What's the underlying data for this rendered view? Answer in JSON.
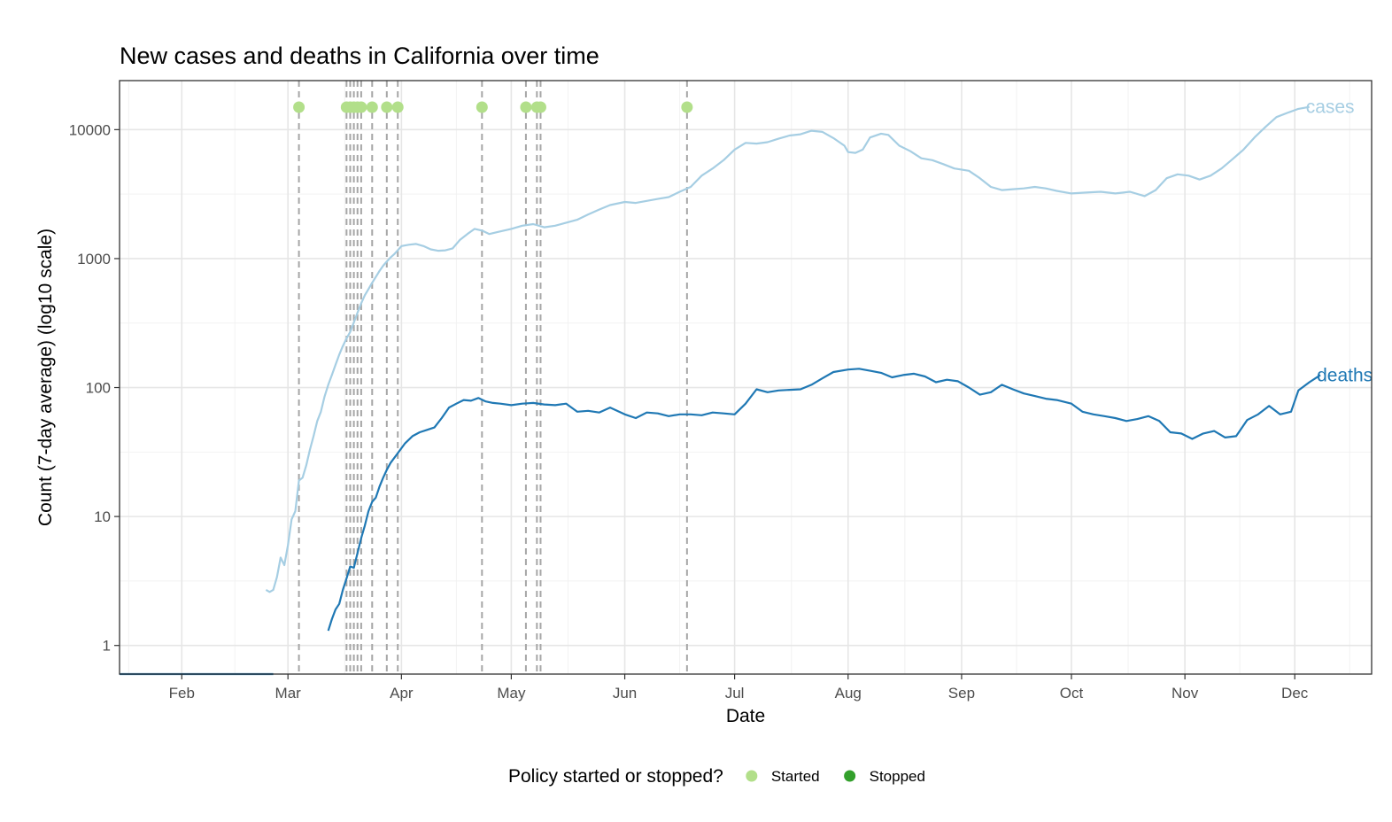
{
  "chart_data": {
    "type": "line",
    "title": "New cases and deaths in California over time",
    "xlabel": "Date",
    "ylabel": "Count (7-day average) (log10 scale)",
    "y_scale": "log10",
    "ylim": [
      0.6,
      24000
    ],
    "xlim": [
      "2020-01-15",
      "2020-12-22"
    ],
    "grid": true,
    "x_ticks": [
      {
        "date": "2020-02-01",
        "label": "Feb"
      },
      {
        "date": "2020-03-01",
        "label": "Mar"
      },
      {
        "date": "2020-04-01",
        "label": "Apr"
      },
      {
        "date": "2020-05-01",
        "label": "May"
      },
      {
        "date": "2020-06-01",
        "label": "Jun"
      },
      {
        "date": "2020-07-01",
        "label": "Jul"
      },
      {
        "date": "2020-08-01",
        "label": "Aug"
      },
      {
        "date": "2020-09-01",
        "label": "Sep"
      },
      {
        "date": "2020-10-01",
        "label": "Oct"
      },
      {
        "date": "2020-11-01",
        "label": "Nov"
      },
      {
        "date": "2020-12-01",
        "label": "Dec"
      }
    ],
    "y_ticks": [
      {
        "value": 1,
        "label": "1"
      },
      {
        "value": 10,
        "label": "10"
      },
      {
        "value": 100,
        "label": "100"
      },
      {
        "value": 1000,
        "label": "1000"
      },
      {
        "value": 10000,
        "label": "10000"
      }
    ],
    "series": [
      {
        "name": "cases",
        "color": "#a6cee3",
        "points": [
          [
            "2020-02-24",
            2.7
          ],
          [
            "2020-02-25",
            2.6
          ],
          [
            "2020-02-26",
            2.7
          ],
          [
            "2020-02-27",
            3.4
          ],
          [
            "2020-02-28",
            4.8
          ],
          [
            "2020-02-29",
            4.2
          ],
          [
            "2020-03-01",
            6
          ],
          [
            "2020-03-02",
            9.5
          ],
          [
            "2020-03-03",
            11
          ],
          [
            "2020-03-04",
            19
          ],
          [
            "2020-03-05",
            20
          ],
          [
            "2020-03-06",
            25
          ],
          [
            "2020-03-07",
            33
          ],
          [
            "2020-03-08",
            42
          ],
          [
            "2020-03-09",
            55
          ],
          [
            "2020-03-10",
            65
          ],
          [
            "2020-03-11",
            85
          ],
          [
            "2020-03-12",
            105
          ],
          [
            "2020-03-13",
            125
          ],
          [
            "2020-03-14",
            150
          ],
          [
            "2020-03-15",
            180
          ],
          [
            "2020-03-16",
            210
          ],
          [
            "2020-03-17",
            240
          ],
          [
            "2020-03-18",
            270
          ],
          [
            "2020-03-19",
            320
          ],
          [
            "2020-03-20",
            380
          ],
          [
            "2020-03-21",
            450
          ],
          [
            "2020-03-22",
            520
          ],
          [
            "2020-03-23",
            580
          ],
          [
            "2020-03-24",
            650
          ],
          [
            "2020-03-25",
            720
          ],
          [
            "2020-03-26",
            800
          ],
          [
            "2020-03-27",
            880
          ],
          [
            "2020-03-28",
            950
          ],
          [
            "2020-03-29",
            1020
          ],
          [
            "2020-03-30",
            1080
          ],
          [
            "2020-04-01",
            1250
          ],
          [
            "2020-04-03",
            1280
          ],
          [
            "2020-04-05",
            1300
          ],
          [
            "2020-04-07",
            1250
          ],
          [
            "2020-04-09",
            1180
          ],
          [
            "2020-04-11",
            1150
          ],
          [
            "2020-04-13",
            1160
          ],
          [
            "2020-04-15",
            1200
          ],
          [
            "2020-04-17",
            1400
          ],
          [
            "2020-04-19",
            1550
          ],
          [
            "2020-04-21",
            1700
          ],
          [
            "2020-04-23",
            1650
          ],
          [
            "2020-04-25",
            1550
          ],
          [
            "2020-04-27",
            1600
          ],
          [
            "2020-04-29",
            1650
          ],
          [
            "2020-05-01",
            1700
          ],
          [
            "2020-05-04",
            1800
          ],
          [
            "2020-05-07",
            1850
          ],
          [
            "2020-05-10",
            1750
          ],
          [
            "2020-05-13",
            1800
          ],
          [
            "2020-05-16",
            1900
          ],
          [
            "2020-05-19",
            2000
          ],
          [
            "2020-05-22",
            2200
          ],
          [
            "2020-05-25",
            2400
          ],
          [
            "2020-05-28",
            2600
          ],
          [
            "2020-06-01",
            2750
          ],
          [
            "2020-06-04",
            2700
          ],
          [
            "2020-06-07",
            2800
          ],
          [
            "2020-06-10",
            2900
          ],
          [
            "2020-06-13",
            3000
          ],
          [
            "2020-06-16",
            3300
          ],
          [
            "2020-06-19",
            3600
          ],
          [
            "2020-06-22",
            4400
          ],
          [
            "2020-06-25",
            5000
          ],
          [
            "2020-06-28",
            5800
          ],
          [
            "2020-07-01",
            7000
          ],
          [
            "2020-07-04",
            7900
          ],
          [
            "2020-07-07",
            7800
          ],
          [
            "2020-07-10",
            8000
          ],
          [
            "2020-07-13",
            8500
          ],
          [
            "2020-07-16",
            9000
          ],
          [
            "2020-07-19",
            9200
          ],
          [
            "2020-07-22",
            9800
          ],
          [
            "2020-07-25",
            9600
          ],
          [
            "2020-07-28",
            8600
          ],
          [
            "2020-07-31",
            7500
          ],
          [
            "2020-08-01",
            6700
          ],
          [
            "2020-08-03",
            6600
          ],
          [
            "2020-08-05",
            7000
          ],
          [
            "2020-08-07",
            8700
          ],
          [
            "2020-08-10",
            9300
          ],
          [
            "2020-08-12",
            9100
          ],
          [
            "2020-08-15",
            7500
          ],
          [
            "2020-08-18",
            6800
          ],
          [
            "2020-08-21",
            6000
          ],
          [
            "2020-08-24",
            5800
          ],
          [
            "2020-08-27",
            5400
          ],
          [
            "2020-08-30",
            5000
          ],
          [
            "2020-09-03",
            4800
          ],
          [
            "2020-09-06",
            4200
          ],
          [
            "2020-09-09",
            3600
          ],
          [
            "2020-09-12",
            3400
          ],
          [
            "2020-09-15",
            3450
          ],
          [
            "2020-09-18",
            3500
          ],
          [
            "2020-09-21",
            3600
          ],
          [
            "2020-09-24",
            3500
          ],
          [
            "2020-09-27",
            3350
          ],
          [
            "2020-10-01",
            3200
          ],
          [
            "2020-10-05",
            3250
          ],
          [
            "2020-10-09",
            3300
          ],
          [
            "2020-10-13",
            3200
          ],
          [
            "2020-10-17",
            3300
          ],
          [
            "2020-10-21",
            3050
          ],
          [
            "2020-10-24",
            3400
          ],
          [
            "2020-10-27",
            4200
          ],
          [
            "2020-10-30",
            4500
          ],
          [
            "2020-11-02",
            4400
          ],
          [
            "2020-11-05",
            4100
          ],
          [
            "2020-11-08",
            4400
          ],
          [
            "2020-11-11",
            5000
          ],
          [
            "2020-11-14",
            5900
          ],
          [
            "2020-11-17",
            7000
          ],
          [
            "2020-11-20",
            8700
          ],
          [
            "2020-11-23",
            10500
          ],
          [
            "2020-11-26",
            12500
          ],
          [
            "2020-11-29",
            13500
          ],
          [
            "2020-12-02",
            14500
          ],
          [
            "2020-12-05",
            15000
          ]
        ]
      },
      {
        "name": "deaths",
        "color": "#1f78b4",
        "points": [
          [
            "2020-03-12",
            1.3
          ],
          [
            "2020-03-13",
            1.6
          ],
          [
            "2020-03-14",
            1.9
          ],
          [
            "2020-03-15",
            2.1
          ],
          [
            "2020-03-16",
            2.7
          ],
          [
            "2020-03-17",
            3.3
          ],
          [
            "2020-03-18",
            4.1
          ],
          [
            "2020-03-19",
            4
          ],
          [
            "2020-03-20",
            5.2
          ],
          [
            "2020-03-21",
            6.8
          ],
          [
            "2020-03-22",
            8.5
          ],
          [
            "2020-03-23",
            11
          ],
          [
            "2020-03-24",
            13
          ],
          [
            "2020-03-25",
            14
          ],
          [
            "2020-03-26",
            17
          ],
          [
            "2020-03-27",
            20
          ],
          [
            "2020-03-28",
            23
          ],
          [
            "2020-03-29",
            26
          ],
          [
            "2020-03-31",
            31
          ],
          [
            "2020-04-02",
            37
          ],
          [
            "2020-04-04",
            42
          ],
          [
            "2020-04-06",
            45
          ],
          [
            "2020-04-08",
            47
          ],
          [
            "2020-04-10",
            49
          ],
          [
            "2020-04-12",
            58
          ],
          [
            "2020-04-14",
            70
          ],
          [
            "2020-04-16",
            75
          ],
          [
            "2020-04-18",
            80
          ],
          [
            "2020-04-20",
            79
          ],
          [
            "2020-04-22",
            83
          ],
          [
            "2020-04-24",
            78
          ],
          [
            "2020-04-26",
            76
          ],
          [
            "2020-04-28",
            75
          ],
          [
            "2020-05-01",
            73
          ],
          [
            "2020-05-04",
            75
          ],
          [
            "2020-05-07",
            76
          ],
          [
            "2020-05-10",
            74
          ],
          [
            "2020-05-13",
            73
          ],
          [
            "2020-05-16",
            75
          ],
          [
            "2020-05-19",
            65
          ],
          [
            "2020-05-22",
            66
          ],
          [
            "2020-05-25",
            64
          ],
          [
            "2020-05-28",
            70
          ],
          [
            "2020-06-01",
            62
          ],
          [
            "2020-06-04",
            58
          ],
          [
            "2020-06-07",
            64
          ],
          [
            "2020-06-10",
            63
          ],
          [
            "2020-06-13",
            60
          ],
          [
            "2020-06-16",
            62
          ],
          [
            "2020-06-19",
            62
          ],
          [
            "2020-06-22",
            61
          ],
          [
            "2020-06-25",
            64
          ],
          [
            "2020-06-28",
            63
          ],
          [
            "2020-07-01",
            62
          ],
          [
            "2020-07-04",
            75
          ],
          [
            "2020-07-07",
            97
          ],
          [
            "2020-07-10",
            92
          ],
          [
            "2020-07-13",
            95
          ],
          [
            "2020-07-16",
            96
          ],
          [
            "2020-07-19",
            97
          ],
          [
            "2020-07-22",
            105
          ],
          [
            "2020-07-25",
            118
          ],
          [
            "2020-07-28",
            132
          ],
          [
            "2020-08-01",
            138
          ],
          [
            "2020-08-04",
            140
          ],
          [
            "2020-08-07",
            135
          ],
          [
            "2020-08-10",
            130
          ],
          [
            "2020-08-13",
            120
          ],
          [
            "2020-08-16",
            125
          ],
          [
            "2020-08-19",
            128
          ],
          [
            "2020-08-22",
            122
          ],
          [
            "2020-08-25",
            110
          ],
          [
            "2020-08-28",
            115
          ],
          [
            "2020-08-31",
            112
          ],
          [
            "2020-09-03",
            100
          ],
          [
            "2020-09-06",
            88
          ],
          [
            "2020-09-09",
            92
          ],
          [
            "2020-09-12",
            105
          ],
          [
            "2020-09-15",
            97
          ],
          [
            "2020-09-18",
            90
          ],
          [
            "2020-09-21",
            86
          ],
          [
            "2020-09-24",
            82
          ],
          [
            "2020-09-27",
            80
          ],
          [
            "2020-10-01",
            75
          ],
          [
            "2020-10-04",
            65
          ],
          [
            "2020-10-07",
            62
          ],
          [
            "2020-10-10",
            60
          ],
          [
            "2020-10-13",
            58
          ],
          [
            "2020-10-16",
            55
          ],
          [
            "2020-10-19",
            57
          ],
          [
            "2020-10-22",
            60
          ],
          [
            "2020-10-25",
            55
          ],
          [
            "2020-10-28",
            45
          ],
          [
            "2020-10-31",
            44
          ],
          [
            "2020-11-03",
            40
          ],
          [
            "2020-11-06",
            44
          ],
          [
            "2020-11-09",
            46
          ],
          [
            "2020-11-12",
            41
          ],
          [
            "2020-11-15",
            42
          ],
          [
            "2020-11-18",
            56
          ],
          [
            "2020-11-21",
            62
          ],
          [
            "2020-11-24",
            72
          ],
          [
            "2020-11-27",
            62
          ],
          [
            "2020-11-30",
            65
          ],
          [
            "2020-12-02",
            95
          ],
          [
            "2020-12-05",
            110
          ],
          [
            "2020-12-08",
            125
          ]
        ]
      },
      {
        "name": "",
        "color": "#1f78b4",
        "points": [
          [
            "2020-01-15",
            0.6
          ],
          [
            "2020-02-26",
            0.6
          ]
        ]
      }
    ],
    "policy_events": [
      {
        "date": "2020-03-04",
        "status": "Started"
      },
      {
        "date": "2020-03-17",
        "status": "Started"
      },
      {
        "date": "2020-03-18",
        "status": "Started"
      },
      {
        "date": "2020-03-19",
        "status": "Started"
      },
      {
        "date": "2020-03-20",
        "status": "Started"
      },
      {
        "date": "2020-03-21",
        "status": "Started"
      },
      {
        "date": "2020-03-24",
        "status": "Started"
      },
      {
        "date": "2020-03-28",
        "status": "Started"
      },
      {
        "date": "2020-03-31",
        "status": "Started"
      },
      {
        "date": "2020-04-23",
        "status": "Started"
      },
      {
        "date": "2020-05-05",
        "status": "Started"
      },
      {
        "date": "2020-05-08",
        "status": "Started"
      },
      {
        "date": "2020-05-09",
        "status": "Started"
      },
      {
        "date": "2020-06-18",
        "status": "Started"
      }
    ],
    "series_labels": [
      {
        "series": "cases",
        "text": "cases"
      },
      {
        "series": "deaths",
        "text": "deaths"
      }
    ],
    "legend": {
      "title": "Policy started or stopped?",
      "position": "bottom",
      "entries": [
        {
          "label": "Started",
          "color": "#b2df8a"
        },
        {
          "label": "Stopped",
          "color": "#33a02c"
        }
      ]
    }
  }
}
